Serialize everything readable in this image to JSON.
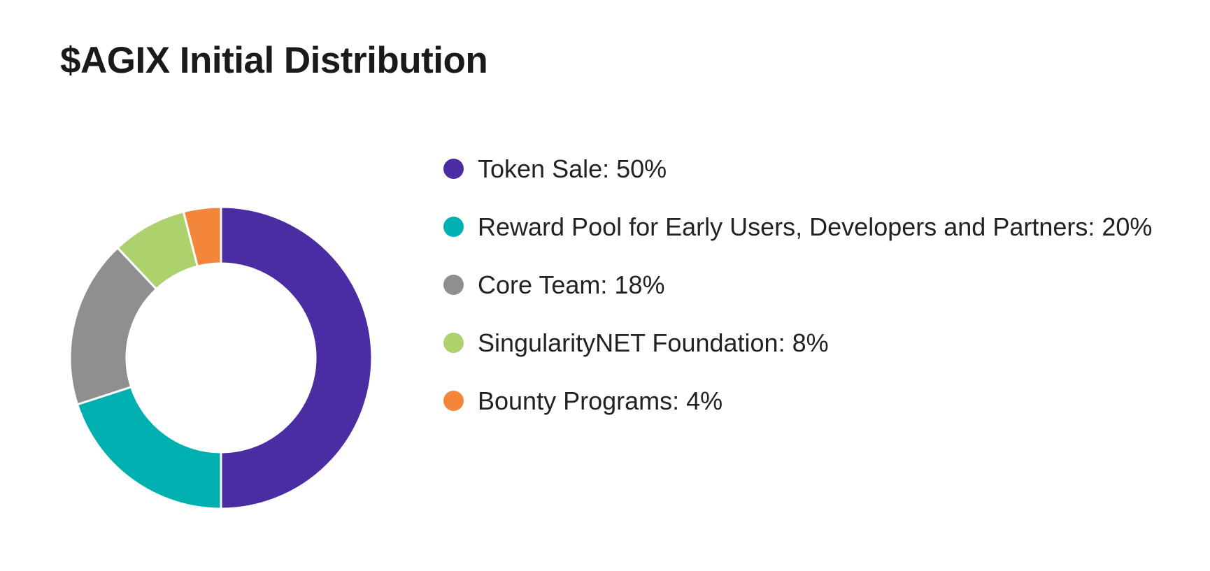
{
  "chart_data": {
    "type": "pie",
    "variant": "donut",
    "title": "$AGIX Initial Distribution",
    "start_angle_deg": 0,
    "direction": "clockwise",
    "legend_position": "right",
    "slices": [
      {
        "label": "Token Sale: 50%",
        "value": 50,
        "color": "#4a2da3"
      },
      {
        "label": "Reward Pool for Early Users, Developers and Partners: 20%",
        "value": 20,
        "color": "#00b0b0"
      },
      {
        "label": "Core Team: 18%",
        "value": 18,
        "color": "#8f8f8f"
      },
      {
        "label": "SingularityNET Foundation: 8%",
        "value": 8,
        "color": "#acd16d"
      },
      {
        "label": "Bounty Programs: 4%",
        "value": 4,
        "color": "#f4863c"
      }
    ]
  }
}
